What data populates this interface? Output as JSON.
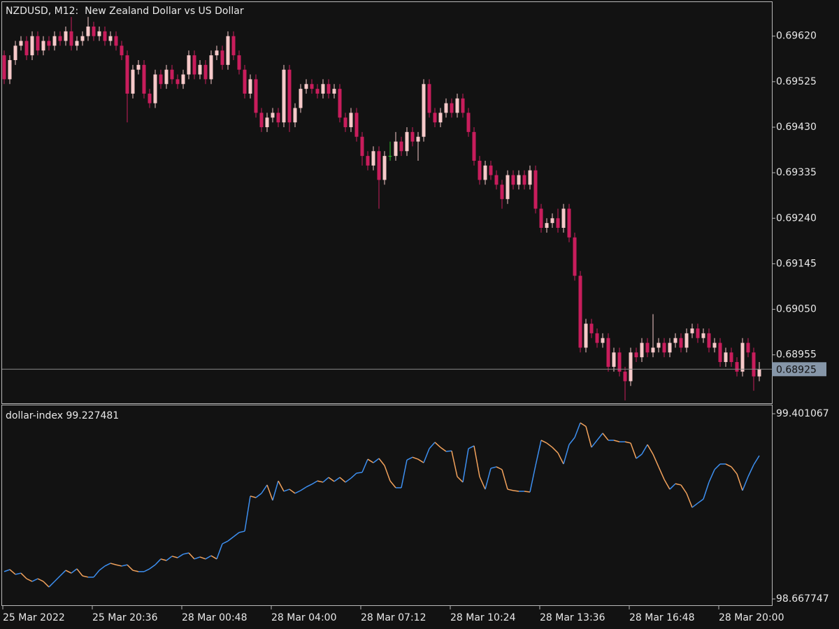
{
  "chart_data": [
    {
      "type": "candlestick",
      "title": "NZDUSD, M12:  New Zealand Dollar vs US Dollar",
      "open": [
        0.6958,
        0.6953,
        0.6957,
        0.696,
        0.6961,
        0.6958,
        0.6962,
        0.6959,
        0.6961,
        0.696,
        0.6962,
        0.6961,
        0.6963,
        0.696,
        0.6961,
        0.6962,
        0.6964,
        0.6962,
        0.6963,
        0.6961,
        0.6962,
        0.696,
        0.6958,
        0.695,
        0.6955,
        0.6956,
        0.695,
        0.6948,
        0.6954,
        0.6952,
        0.6955,
        0.6953,
        0.6952,
        0.6954,
        0.6958,
        0.6954,
        0.6956,
        0.6953,
        0.6958,
        0.6959,
        0.6956,
        0.6962,
        0.6958,
        0.6955,
        0.695,
        0.6953,
        0.6946,
        0.6943,
        0.6945,
        0.6946,
        0.6944,
        0.6955,
        0.6944,
        0.6947,
        0.6951,
        0.6952,
        0.6951,
        0.695,
        0.6952,
        0.695,
        0.6951,
        0.6945,
        0.6943,
        0.6946,
        0.6941,
        0.6937,
        0.6935,
        0.6938,
        0.6932,
        0.6937,
        0.6937,
        0.694,
        0.6938,
        0.6942,
        0.694,
        0.6941,
        0.6952,
        0.6946,
        0.6944,
        0.6946,
        0.6948,
        0.6946,
        0.6949,
        0.6946,
        0.6942,
        0.6936,
        0.6932,
        0.6935,
        0.6933,
        0.6931,
        0.6928,
        0.6933,
        0.6931,
        0.6933,
        0.6931,
        0.6934,
        0.6926,
        0.6922,
        0.6923,
        0.6924,
        0.6922,
        0.6926,
        0.692,
        0.6912,
        0.6897,
        0.6902,
        0.69,
        0.6898,
        0.6899,
        0.6893,
        0.6896,
        0.6892,
        0.689,
        0.6896,
        0.6895,
        0.6898,
        0.6896,
        0.6897,
        0.6898,
        0.6896,
        0.6898,
        0.6899,
        0.6897,
        0.69,
        0.6901,
        0.6899,
        0.69,
        0.6897,
        0.6898,
        0.6894,
        0.6896,
        0.6894,
        0.6892,
        0.6898,
        0.6896,
        0.6891
      ],
      "high": [
        0.6959,
        0.6958,
        0.6961,
        0.6962,
        0.6962,
        0.6963,
        0.6963,
        0.6962,
        0.6962,
        0.6963,
        0.6963,
        0.6964,
        0.6966,
        0.6962,
        0.6963,
        0.6966,
        0.6965,
        0.6964,
        0.6964,
        0.6963,
        0.6963,
        0.6961,
        0.6959,
        0.6956,
        0.6957,
        0.6957,
        0.6951,
        0.6955,
        0.6955,
        0.6956,
        0.6956,
        0.6954,
        0.6955,
        0.6959,
        0.6959,
        0.6957,
        0.6957,
        0.6959,
        0.696,
        0.696,
        0.6963,
        0.6963,
        0.6959,
        0.6956,
        0.6954,
        0.6954,
        0.6947,
        0.6946,
        0.6947,
        0.6947,
        0.6956,
        0.6956,
        0.6948,
        0.6952,
        0.6953,
        0.6953,
        0.6952,
        0.6953,
        0.6953,
        0.6952,
        0.6952,
        0.6946,
        0.6947,
        0.6947,
        0.6942,
        0.6938,
        0.6939,
        0.6939,
        0.6938,
        0.694,
        0.6942,
        0.6941,
        0.6943,
        0.6943,
        0.6942,
        0.6953,
        0.6953,
        0.6947,
        0.6947,
        0.6949,
        0.6949,
        0.695,
        0.695,
        0.6947,
        0.6943,
        0.6937,
        0.6936,
        0.6936,
        0.6934,
        0.6932,
        0.6934,
        0.6934,
        0.6934,
        0.6934,
        0.6935,
        0.6935,
        0.6927,
        0.6924,
        0.6925,
        0.6926,
        0.6927,
        0.6927,
        0.6921,
        0.6913,
        0.6903,
        0.6903,
        0.6901,
        0.69,
        0.69,
        0.6897,
        0.6897,
        0.6893,
        0.6897,
        0.6897,
        0.6899,
        0.6899,
        0.6904,
        0.6899,
        0.6899,
        0.6899,
        0.69,
        0.69,
        0.6901,
        0.6902,
        0.6902,
        0.6901,
        0.6901,
        0.6899,
        0.6899,
        0.6897,
        0.6897,
        0.6895,
        0.6899,
        0.6899,
        0.6897,
        0.6894
      ],
      "low": [
        0.6952,
        0.6952,
        0.6956,
        0.6959,
        0.6957,
        0.6957,
        0.6958,
        0.6958,
        0.6959,
        0.6959,
        0.696,
        0.696,
        0.6959,
        0.6959,
        0.696,
        0.6961,
        0.6961,
        0.6961,
        0.696,
        0.696,
        0.6959,
        0.6957,
        0.6944,
        0.6949,
        0.6954,
        0.6949,
        0.6947,
        0.6947,
        0.6951,
        0.6951,
        0.6952,
        0.6951,
        0.6951,
        0.6953,
        0.6953,
        0.6953,
        0.6952,
        0.6952,
        0.6957,
        0.6955,
        0.6955,
        0.6957,
        0.6954,
        0.6949,
        0.6949,
        0.6945,
        0.6942,
        0.6942,
        0.6944,
        0.6943,
        0.6943,
        0.6942,
        0.6943,
        0.6946,
        0.695,
        0.695,
        0.6949,
        0.6949,
        0.6949,
        0.6949,
        0.6944,
        0.6942,
        0.6942,
        0.694,
        0.6935,
        0.6934,
        0.6934,
        0.6926,
        0.6931,
        0.6936,
        0.6936,
        0.6937,
        0.6937,
        0.6939,
        0.6936,
        0.694,
        0.6945,
        0.6943,
        0.6943,
        0.6945,
        0.6945,
        0.6945,
        0.6945,
        0.6941,
        0.6935,
        0.6931,
        0.6931,
        0.6932,
        0.693,
        0.6926,
        0.6927,
        0.693,
        0.693,
        0.693,
        0.693,
        0.6925,
        0.6921,
        0.6921,
        0.6922,
        0.6921,
        0.6921,
        0.6919,
        0.6911,
        0.6896,
        0.6896,
        0.6899,
        0.6897,
        0.6897,
        0.6892,
        0.6892,
        0.6891,
        0.6886,
        0.6889,
        0.6894,
        0.6894,
        0.6895,
        0.6895,
        0.6896,
        0.6895,
        0.6895,
        0.6897,
        0.6896,
        0.6896,
        0.6899,
        0.6898,
        0.6898,
        0.6896,
        0.6896,
        0.6893,
        0.6893,
        0.6893,
        0.6891,
        0.6891,
        0.6895,
        0.6888,
        0.689
      ],
      "close": [
        0.6953,
        0.6957,
        0.696,
        0.6961,
        0.6958,
        0.6962,
        0.6959,
        0.6961,
        0.696,
        0.6962,
        0.6961,
        0.6963,
        0.696,
        0.6961,
        0.6962,
        0.6964,
        0.6962,
        0.6963,
        0.6961,
        0.6962,
        0.696,
        0.6958,
        0.695,
        0.6955,
        0.6956,
        0.695,
        0.6948,
        0.6954,
        0.6952,
        0.6955,
        0.6953,
        0.6952,
        0.6954,
        0.6958,
        0.6954,
        0.6956,
        0.6953,
        0.6958,
        0.6959,
        0.6956,
        0.6962,
        0.6958,
        0.6955,
        0.695,
        0.6953,
        0.6946,
        0.6943,
        0.6945,
        0.6946,
        0.6944,
        0.6955,
        0.6944,
        0.6947,
        0.6951,
        0.6952,
        0.6951,
        0.695,
        0.6952,
        0.695,
        0.6951,
        0.6945,
        0.6943,
        0.6946,
        0.6941,
        0.6937,
        0.6935,
        0.6938,
        0.6932,
        0.6937,
        0.6937,
        0.694,
        0.6938,
        0.6942,
        0.694,
        0.6941,
        0.6952,
        0.6946,
        0.6944,
        0.6946,
        0.6948,
        0.6946,
        0.6949,
        0.6946,
        0.6942,
        0.6936,
        0.6932,
        0.6935,
        0.6933,
        0.6931,
        0.6928,
        0.6933,
        0.6931,
        0.6933,
        0.6931,
        0.6934,
        0.6926,
        0.6922,
        0.6923,
        0.6924,
        0.6922,
        0.6926,
        0.692,
        0.6912,
        0.6897,
        0.6902,
        0.69,
        0.6898,
        0.6899,
        0.6893,
        0.6896,
        0.6892,
        0.689,
        0.6896,
        0.6895,
        0.6898,
        0.6896,
        0.6897,
        0.6898,
        0.6896,
        0.6898,
        0.6899,
        0.6897,
        0.69,
        0.6901,
        0.6899,
        0.69,
        0.6897,
        0.6898,
        0.6894,
        0.6896,
        0.6894,
        0.6892,
        0.6898,
        0.6896,
        0.6891,
        0.68925
      ],
      "up_color": "#f6c9c9",
      "down_color": "#c81d5c",
      "doji_color": "#2bc42b",
      "ylim": [
        0.68854,
        0.69691
      ],
      "yticks": [
        {
          "value": 0.6962,
          "label": "0.69620"
        },
        {
          "value": 0.69525,
          "label": "0.69525"
        },
        {
          "value": 0.6943,
          "label": "0.69430"
        },
        {
          "value": 0.69335,
          "label": "0.69335"
        },
        {
          "value": 0.6924,
          "label": "0.69240"
        },
        {
          "value": 0.69145,
          "label": "0.69145"
        },
        {
          "value": 0.6905,
          "label": "0.69050"
        },
        {
          "value": 0.68955,
          "label": "0.68955"
        }
      ],
      "last_price": 0.68925
    },
    {
      "type": "line",
      "name": "dollar-index",
      "current_value": 99.227481,
      "categories": [
        "25 Mar 2022",
        null,
        null,
        null,
        null,
        null,
        null,
        null,
        null,
        null,
        null,
        null,
        null,
        null,
        null,
        null,
        "25 Mar 20:36",
        null,
        null,
        null,
        null,
        null,
        null,
        null,
        null,
        null,
        null,
        null,
        null,
        null,
        null,
        null,
        "28 Mar 00:48",
        null,
        null,
        null,
        null,
        null,
        null,
        null,
        null,
        null,
        null,
        null,
        null,
        null,
        null,
        null,
        "28 Mar 04:00",
        null,
        null,
        null,
        null,
        null,
        null,
        null,
        null,
        null,
        null,
        null,
        null,
        null,
        null,
        null,
        "28 Mar 07:12",
        null,
        null,
        null,
        null,
        null,
        null,
        null,
        null,
        null,
        null,
        null,
        null,
        null,
        null,
        null,
        "28 Mar 10:24",
        null,
        null,
        null,
        null,
        null,
        null,
        null,
        null,
        null,
        null,
        null,
        null,
        null,
        null,
        null,
        "28 Mar 13:36",
        null,
        null,
        null,
        null,
        null,
        null,
        null,
        null,
        null,
        null,
        null,
        null,
        null,
        null,
        null,
        "28 Mar 16:48",
        null,
        null,
        null,
        null,
        null,
        null,
        null,
        null,
        null,
        null,
        null,
        null,
        null,
        null,
        null,
        "28 Mar 20:00",
        null,
        null,
        null,
        null,
        null,
        null,
        null
      ],
      "values": [
        98.776,
        98.784,
        98.765,
        98.77,
        98.748,
        98.737,
        98.748,
        98.737,
        98.715,
        98.737,
        98.759,
        98.781,
        98.77,
        98.787,
        98.759,
        98.754,
        98.754,
        98.781,
        98.798,
        98.809,
        98.803,
        98.798,
        98.803,
        98.781,
        98.776,
        98.776,
        98.787,
        98.803,
        98.826,
        98.82,
        98.837,
        98.831,
        98.845,
        98.85,
        98.826,
        98.834,
        98.826,
        98.839,
        98.826,
        98.886,
        98.897,
        98.914,
        98.931,
        98.936,
        99.075,
        99.069,
        99.086,
        99.119,
        99.058,
        99.135,
        99.094,
        99.102,
        99.086,
        99.097,
        99.111,
        99.122,
        99.135,
        99.13,
        99.149,
        99.133,
        99.149,
        99.13,
        99.146,
        99.166,
        99.169,
        99.221,
        99.207,
        99.224,
        99.196,
        99.135,
        99.108,
        99.108,
        99.218,
        99.229,
        99.221,
        99.207,
        99.263,
        99.288,
        99.268,
        99.252,
        99.254,
        99.152,
        99.13,
        99.263,
        99.274,
        99.152,
        99.102,
        99.185,
        99.191,
        99.18,
        99.102,
        99.097,
        99.094,
        99.094,
        99.091,
        99.196,
        99.296,
        99.285,
        99.268,
        99.246,
        99.202,
        99.279,
        99.307,
        99.365,
        99.351,
        99.268,
        99.296,
        99.324,
        99.296,
        99.296,
        99.29,
        99.29,
        99.285,
        99.224,
        99.241,
        99.279,
        99.241,
        99.191,
        99.141,
        99.102,
        99.124,
        99.119,
        99.086,
        99.03,
        99.047,
        99.063,
        99.13,
        99.18,
        99.202,
        99.202,
        99.191,
        99.163,
        99.097,
        99.152,
        99.199,
        99.235
      ],
      "up_color": "#3d8ff0",
      "down_color": "#f2a25c",
      "ylim": [
        98.667747,
        99.401067
      ],
      "yticks": [
        98.667747,
        99.401067
      ]
    }
  ]
}
